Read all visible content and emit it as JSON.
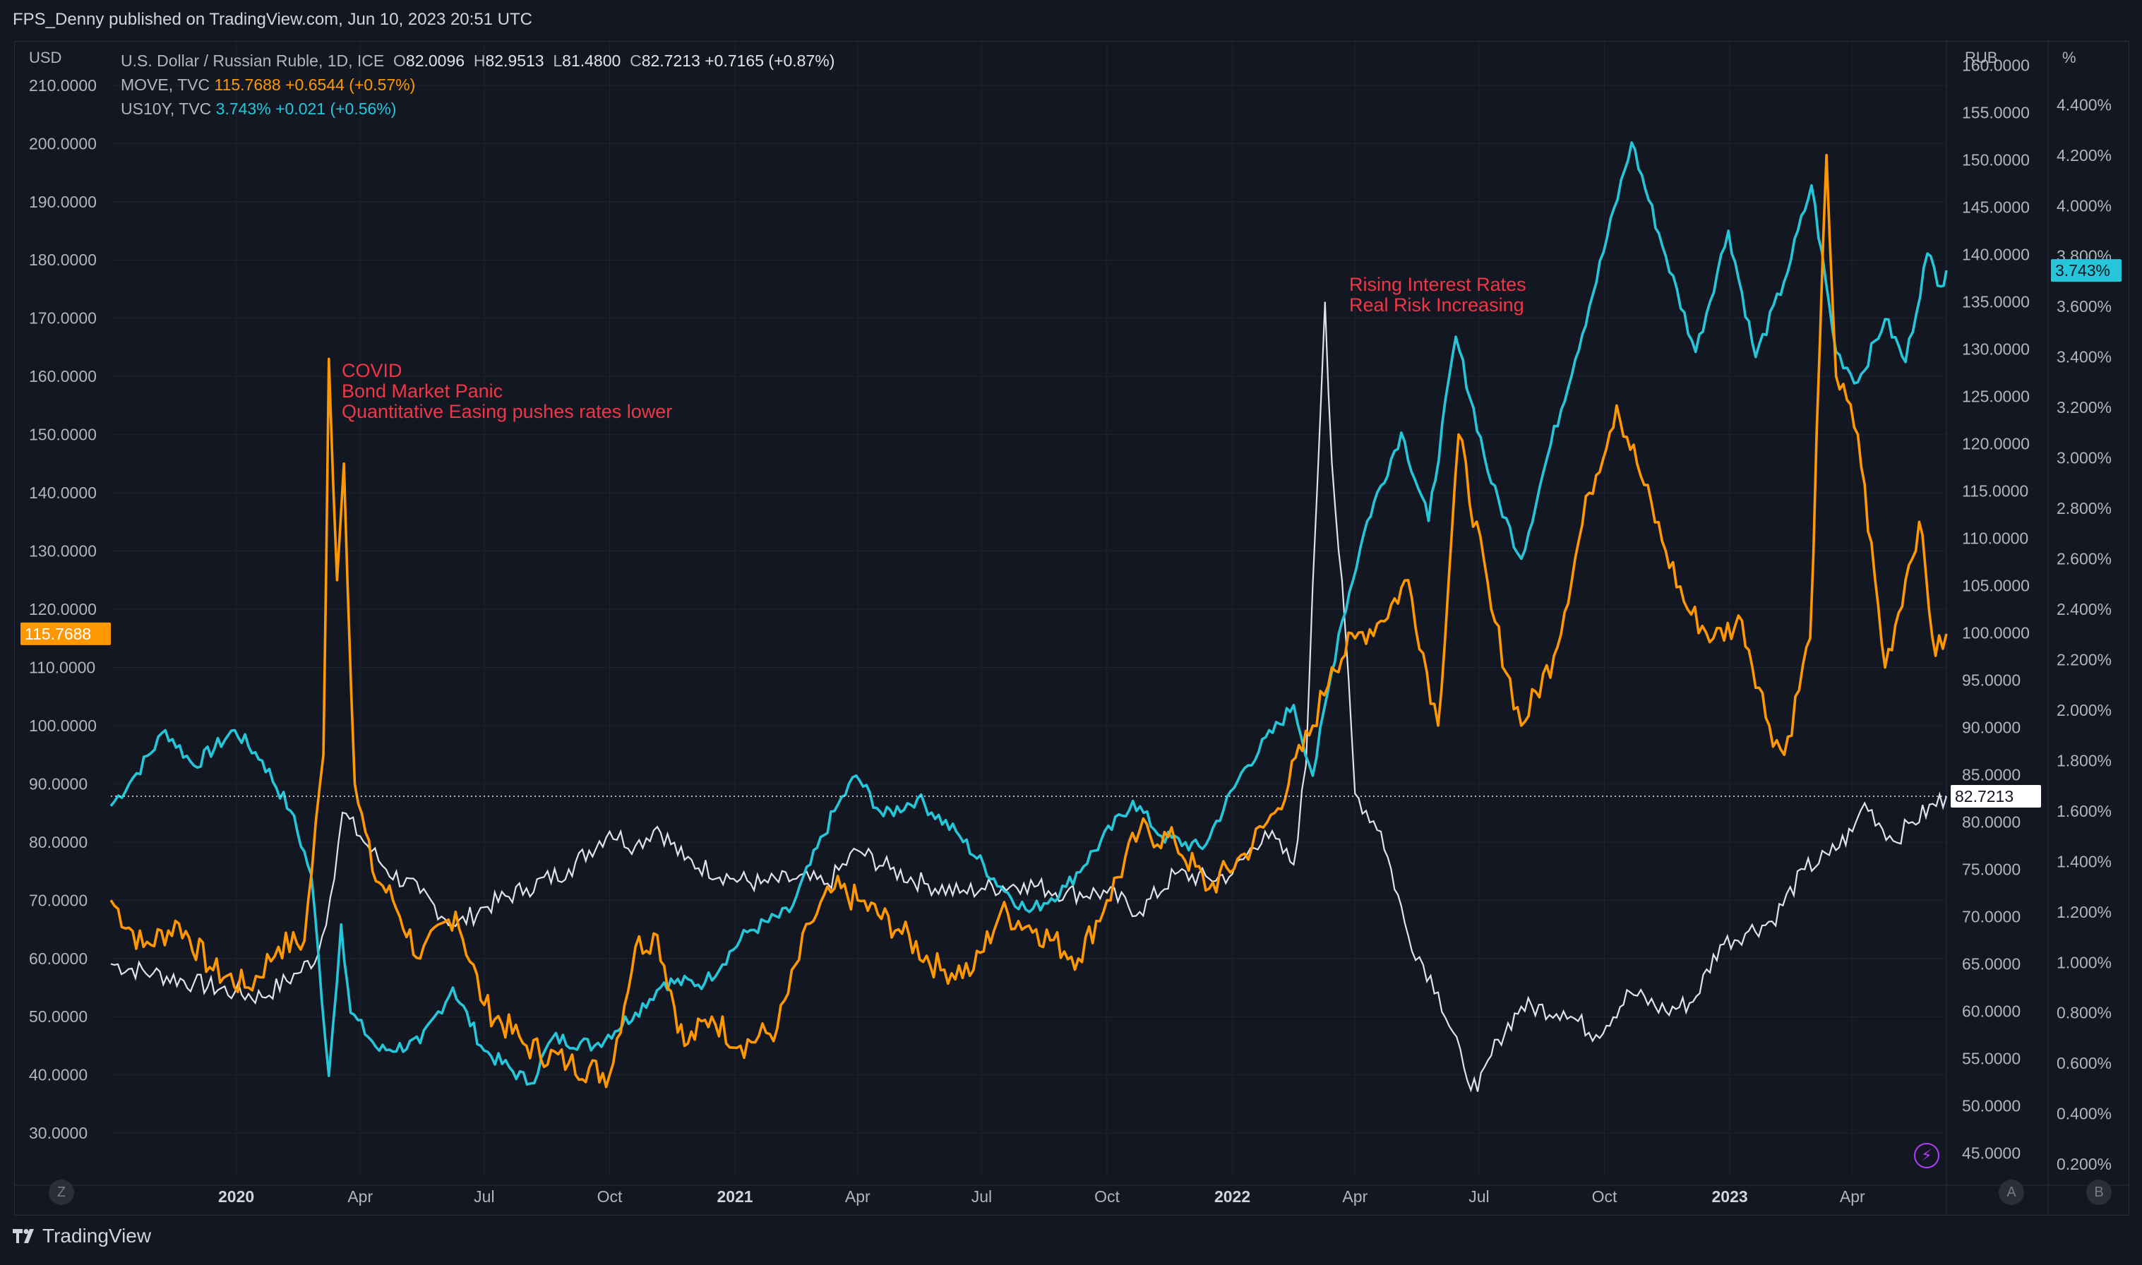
{
  "header": {
    "publisher": "FPS_Denny published on TradingView.com, Jun 10, 2023 20:51 UTC"
  },
  "footer": {
    "brand": "TradingView"
  },
  "legend": {
    "main": {
      "name": "U.S. Dollar / Russian Ruble, 1D, ICE",
      "o": "82.0096",
      "h": "82.9513",
      "l": "81.4800",
      "c": "82.7213",
      "chg": "+0.7165 (+0.87%)"
    },
    "move": {
      "name": "MOVE, TVC",
      "value": "115.7688",
      "chg": "+0.6544 (+0.57%)"
    },
    "us10y": {
      "name": "US10Y, TVC",
      "value": "3.743%",
      "chg": "+0.021 (+0.56%)"
    }
  },
  "axes": {
    "left_unit": "USD",
    "mid_unit": "RUB",
    "right_unit": "%",
    "left_ticks": [
      "210.0000",
      "200.0000",
      "190.0000",
      "180.0000",
      "170.0000",
      "160.0000",
      "150.0000",
      "140.0000",
      "130.0000",
      "120.0000",
      "110.0000",
      "100.0000",
      "90.0000",
      "80.0000",
      "70.0000",
      "60.0000",
      "50.0000",
      "40.0000",
      "30.0000"
    ],
    "rub_ticks": [
      "160.0000",
      "155.0000",
      "150.0000",
      "145.0000",
      "140.0000",
      "135.0000",
      "130.0000",
      "125.0000",
      "120.0000",
      "115.0000",
      "110.0000",
      "105.0000",
      "100.0000",
      "95.0000",
      "90.0000",
      "85.0000",
      "80.0000",
      "75.0000",
      "70.0000",
      "65.0000",
      "60.0000",
      "55.0000",
      "50.0000",
      "45.0000"
    ],
    "pct_ticks": [
      "4.400%",
      "4.200%",
      "4.000%",
      "3.800%",
      "3.600%",
      "3.400%",
      "3.200%",
      "3.000%",
      "2.800%",
      "2.600%",
      "2.400%",
      "2.200%",
      "2.000%",
      "1.800%",
      "1.600%",
      "1.400%",
      "1.200%",
      "1.000%",
      "0.800%",
      "0.600%",
      "0.400%",
      "0.200%"
    ],
    "x_ticks": [
      {
        "label": "2020",
        "bold": true
      },
      {
        "label": "Apr",
        "bold": false
      },
      {
        "label": "Jul",
        "bold": false
      },
      {
        "label": "Oct",
        "bold": false
      },
      {
        "label": "2021",
        "bold": true
      },
      {
        "label": "Apr",
        "bold": false
      },
      {
        "label": "Jul",
        "bold": false
      },
      {
        "label": "Oct",
        "bold": false
      },
      {
        "label": "2022",
        "bold": true
      },
      {
        "label": "Apr",
        "bold": false
      },
      {
        "label": "Jul",
        "bold": false
      },
      {
        "label": "Oct",
        "bold": false
      },
      {
        "label": "2023",
        "bold": true
      },
      {
        "label": "Apr",
        "bold": false
      }
    ],
    "buttons": {
      "left": "Z",
      "a": "A",
      "b": "B"
    }
  },
  "price_tags": {
    "move": "115.7688",
    "usdrub": "82.7213",
    "us10y": "3.743%"
  },
  "annotations": [
    {
      "lines": [
        "COVID",
        "Bond Market Panic",
        "Quantitative Easing pushes rates lower"
      ]
    },
    {
      "lines": [
        "Rising Interest Rates",
        "Real Risk Increasing"
      ]
    }
  ],
  "colors": {
    "background": "#131722",
    "usdrub": "#e0e3eb",
    "move": "#ff9800",
    "us10y": "#26c6da",
    "annotation": "#f23645",
    "grid": "#1f2330"
  },
  "chart_data": {
    "type": "line",
    "x_range": [
      "2019-10-01",
      "2023-06-09"
    ],
    "series": [
      {
        "name": "U.S. Dollar / Russian Ruble, 1D, ICE",
        "axis": "RUB",
        "ylim": [
          42.5,
          162.5
        ],
        "points": [
          [
            "2019-10-01",
            65.0
          ],
          [
            "2019-11-01",
            64.0
          ],
          [
            "2019-12-01",
            63.0
          ],
          [
            "2019-12-31",
            62.0
          ],
          [
            "2020-01-20",
            61.5
          ],
          [
            "2020-02-15",
            64.0
          ],
          [
            "2020-03-01",
            66.0
          ],
          [
            "2020-03-10",
            72.0
          ],
          [
            "2020-03-19",
            81.0
          ],
          [
            "2020-04-01",
            78.5
          ],
          [
            "2020-04-20",
            75.0
          ],
          [
            "2020-05-15",
            72.5
          ],
          [
            "2020-06-10",
            69.0
          ],
          [
            "2020-07-01",
            71.0
          ],
          [
            "2020-08-01",
            73.0
          ],
          [
            "2020-09-01",
            75.0
          ],
          [
            "2020-10-01",
            79.0
          ],
          [
            "2020-10-20",
            77.5
          ],
          [
            "2020-11-05",
            79.5
          ],
          [
            "2020-11-25",
            76.0
          ],
          [
            "2020-12-31",
            74.0
          ],
          [
            "2021-01-20",
            73.5
          ],
          [
            "2021-02-15",
            74.0
          ],
          [
            "2021-03-10",
            73.5
          ],
          [
            "2021-04-01",
            77.0
          ],
          [
            "2021-04-25",
            75.0
          ],
          [
            "2021-05-20",
            73.5
          ],
          [
            "2021-06-15",
            72.5
          ],
          [
            "2021-07-01",
            73.0
          ],
          [
            "2021-08-01",
            73.5
          ],
          [
            "2021-09-01",
            72.5
          ],
          [
            "2021-10-01",
            72.5
          ],
          [
            "2021-10-25",
            70.5
          ],
          [
            "2021-11-20",
            74.5
          ],
          [
            "2021-12-15",
            74.0
          ],
          [
            "2022-01-01",
            74.5
          ],
          [
            "2022-01-25",
            79.0
          ],
          [
            "2022-02-15",
            75.5
          ],
          [
            "2022-02-24",
            86.0
          ],
          [
            "2022-03-01",
            105.0
          ],
          [
            "2022-03-10",
            135.0
          ],
          [
            "2022-03-15",
            118.0
          ],
          [
            "2022-03-25",
            100.0
          ],
          [
            "2022-04-01",
            83.0
          ],
          [
            "2022-04-20",
            79.0
          ],
          [
            "2022-05-10",
            68.0
          ],
          [
            "2022-06-01",
            62.0
          ],
          [
            "2022-06-20",
            54.0
          ],
          [
            "2022-06-30",
            51.5
          ],
          [
            "2022-07-15",
            57.0
          ],
          [
            "2022-08-01",
            60.5
          ],
          [
            "2022-09-01",
            60.0
          ],
          [
            "2022-09-25",
            57.5
          ],
          [
            "2022-10-20",
            62.0
          ],
          [
            "2022-11-15",
            60.0
          ],
          [
            "2022-12-05",
            61.0
          ],
          [
            "2022-12-25",
            67.0
          ],
          [
            "2023-01-15",
            68.5
          ],
          [
            "2023-02-01",
            69.5
          ],
          [
            "2023-02-25",
            75.0
          ],
          [
            "2023-03-15",
            76.5
          ],
          [
            "2023-04-01",
            79.0
          ],
          [
            "2023-04-10",
            82.0
          ],
          [
            "2023-05-01",
            78.0
          ],
          [
            "2023-05-15",
            80.0
          ],
          [
            "2023-06-09",
            82.7213
          ]
        ]
      },
      {
        "name": "MOVE, TVC",
        "axis": "USD",
        "ylim": [
          22.5,
          217.5
        ],
        "points": [
          [
            "2019-10-01",
            70
          ],
          [
            "2019-10-25",
            62
          ],
          [
            "2019-11-20",
            66
          ],
          [
            "2019-12-15",
            58
          ],
          [
            "2020-01-10",
            55
          ],
          [
            "2020-02-01",
            62
          ],
          [
            "2020-02-20",
            63
          ],
          [
            "2020-03-05",
            95
          ],
          [
            "2020-03-09",
            163
          ],
          [
            "2020-03-15",
            125
          ],
          [
            "2020-03-20",
            145
          ],
          [
            "2020-03-28",
            90
          ],
          [
            "2020-04-10",
            75
          ],
          [
            "2020-04-25",
            70
          ],
          [
            "2020-05-15",
            60
          ],
          [
            "2020-06-10",
            68
          ],
          [
            "2020-07-01",
            52
          ],
          [
            "2020-08-01",
            45
          ],
          [
            "2020-09-01",
            42
          ],
          [
            "2020-10-01",
            40
          ],
          [
            "2020-10-20",
            62
          ],
          [
            "2020-11-05",
            64
          ],
          [
            "2020-11-25",
            45
          ],
          [
            "2020-12-15",
            50
          ],
          [
            "2021-01-05",
            45
          ],
          [
            "2021-02-01",
            48
          ],
          [
            "2021-02-25",
            66
          ],
          [
            "2021-03-15",
            72
          ],
          [
            "2021-04-01",
            70
          ],
          [
            "2021-05-01",
            65
          ],
          [
            "2021-06-01",
            58
          ],
          [
            "2021-06-25",
            58
          ],
          [
            "2021-07-15",
            68
          ],
          [
            "2021-08-10",
            65
          ],
          [
            "2021-09-10",
            60
          ],
          [
            "2021-10-01",
            70
          ],
          [
            "2021-10-25",
            82
          ],
          [
            "2021-11-20",
            80
          ],
          [
            "2021-12-15",
            72
          ],
          [
            "2022-01-10",
            78
          ],
          [
            "2022-02-01",
            85
          ],
          [
            "2022-03-01",
            100
          ],
          [
            "2022-03-15",
            110
          ],
          [
            "2022-04-01",
            115
          ],
          [
            "2022-04-20",
            118
          ],
          [
            "2022-05-10",
            125
          ],
          [
            "2022-06-01",
            100
          ],
          [
            "2022-06-16",
            150
          ],
          [
            "2022-07-10",
            120
          ],
          [
            "2022-08-01",
            100
          ],
          [
            "2022-08-25",
            112
          ],
          [
            "2022-09-20",
            140
          ],
          [
            "2022-10-10",
            155
          ],
          [
            "2022-10-25",
            145
          ],
          [
            "2022-11-15",
            130
          ],
          [
            "2022-12-01",
            120
          ],
          [
            "2022-12-20",
            115
          ],
          [
            "2023-01-10",
            118
          ],
          [
            "2023-01-30",
            100
          ],
          [
            "2023-02-10",
            95
          ],
          [
            "2023-03-01",
            115
          ],
          [
            "2023-03-13",
            198
          ],
          [
            "2023-03-20",
            160
          ],
          [
            "2023-04-05",
            150
          ],
          [
            "2023-04-25",
            110
          ],
          [
            "2023-05-10",
            125
          ],
          [
            "2023-05-20",
            135
          ],
          [
            "2023-06-01",
            112
          ],
          [
            "2023-06-09",
            115.7688
          ]
        ]
      },
      {
        "name": "US10Y, TVC",
        "axis": "%",
        "ylim": [
          0.15,
          4.65
        ],
        "points": [
          [
            "2019-10-01",
            1.62
          ],
          [
            "2019-10-20",
            1.75
          ],
          [
            "2019-11-10",
            1.92
          ],
          [
            "2019-12-01",
            1.78
          ],
          [
            "2019-12-31",
            1.92
          ],
          [
            "2020-01-20",
            1.8
          ],
          [
            "2020-02-10",
            1.6
          ],
          [
            "2020-02-25",
            1.35
          ],
          [
            "2020-03-09",
            0.55
          ],
          [
            "2020-03-18",
            1.15
          ],
          [
            "2020-03-25",
            0.8
          ],
          [
            "2020-04-15",
            0.65
          ],
          [
            "2020-05-15",
            0.68
          ],
          [
            "2020-06-08",
            0.9
          ],
          [
            "2020-07-01",
            0.65
          ],
          [
            "2020-08-04",
            0.52
          ],
          [
            "2020-08-20",
            0.7
          ],
          [
            "2020-09-20",
            0.67
          ],
          [
            "2020-10-20",
            0.8
          ],
          [
            "2020-11-10",
            0.92
          ],
          [
            "2020-12-10",
            0.92
          ],
          [
            "2021-01-10",
            1.12
          ],
          [
            "2021-02-10",
            1.2
          ],
          [
            "2021-03-15",
            1.6
          ],
          [
            "2021-03-31",
            1.74
          ],
          [
            "2021-04-20",
            1.58
          ],
          [
            "2021-05-15",
            1.65
          ],
          [
            "2021-06-15",
            1.5
          ],
          [
            "2021-07-15",
            1.3
          ],
          [
            "2021-08-05",
            1.2
          ],
          [
            "2021-09-01",
            1.3
          ],
          [
            "2021-10-20",
            1.64
          ],
          [
            "2021-11-10",
            1.5
          ],
          [
            "2021-12-10",
            1.45
          ],
          [
            "2022-01-10",
            1.77
          ],
          [
            "2022-02-15",
            2.02
          ],
          [
            "2022-03-01",
            1.74
          ],
          [
            "2022-03-20",
            2.3
          ],
          [
            "2022-04-10",
            2.75
          ],
          [
            "2022-05-05",
            3.1
          ],
          [
            "2022-05-25",
            2.75
          ],
          [
            "2022-06-14",
            3.48
          ],
          [
            "2022-07-10",
            2.9
          ],
          [
            "2022-08-01",
            2.6
          ],
          [
            "2022-08-20",
            3.0
          ],
          [
            "2022-09-20",
            3.6
          ],
          [
            "2022-10-21",
            4.25
          ],
          [
            "2022-11-15",
            3.8
          ],
          [
            "2022-12-07",
            3.42
          ],
          [
            "2022-12-31",
            3.9
          ],
          [
            "2023-01-20",
            3.4
          ],
          [
            "2023-02-10",
            3.7
          ],
          [
            "2023-03-02",
            4.08
          ],
          [
            "2023-03-20",
            3.42
          ],
          [
            "2023-04-05",
            3.3
          ],
          [
            "2023-04-25",
            3.55
          ],
          [
            "2023-05-10",
            3.38
          ],
          [
            "2023-05-26",
            3.81
          ],
          [
            "2023-06-05",
            3.68
          ],
          [
            "2023-06-09",
            3.743
          ]
        ]
      }
    ]
  }
}
